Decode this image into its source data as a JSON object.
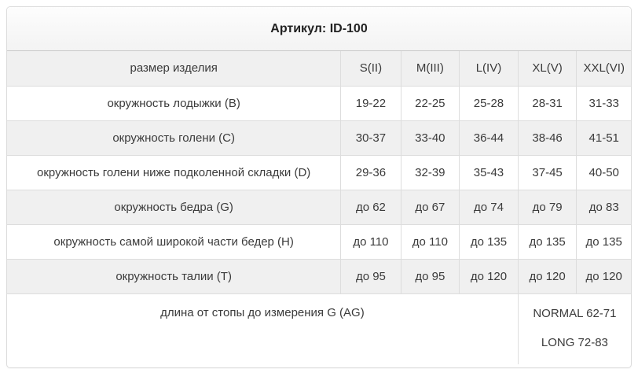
{
  "card": {
    "title": "Артикул: ID-100"
  },
  "table": {
    "header": {
      "label": "размер изделия",
      "sizes": [
        "S(II)",
        "M(III)",
        "L(IV)",
        "XL(V)",
        "XXL(VI)"
      ]
    },
    "rows": [
      {
        "label": "окружность лодыжки (B)",
        "values": [
          "19-22",
          "22-25",
          "25-28",
          "28-31",
          "31-33"
        ]
      },
      {
        "label": "окружность голени (C)",
        "values": [
          "30-37",
          "33-40",
          "36-44",
          "38-46",
          "41-51"
        ]
      },
      {
        "label": "окружность голени ниже подколенной складки (D)",
        "values": [
          "29-36",
          "32-39",
          "35-43",
          "37-45",
          "40-50"
        ]
      },
      {
        "label": "окружность бедра (G)",
        "values": [
          "до 62",
          "до 67",
          "до 74",
          "до 79",
          "до 83"
        ]
      },
      {
        "label": "окружность самой широкой части бедер (H)",
        "values": [
          "до 110",
          "до 110",
          "до 135",
          "до 135",
          "до 135"
        ]
      },
      {
        "label": "окружность талии (T)",
        "values": [
          "до 95",
          "до 95",
          "до 120",
          "до 120",
          "до 120"
        ]
      }
    ],
    "footer": {
      "label": "длина от стопы до измерения G (AG)",
      "lines": [
        "NORMAL 62-71",
        "LONG 72-83"
      ]
    }
  },
  "colors": {
    "stripe_background": "#f0f0f0",
    "cell_border": "#dddddd",
    "title_divider": "#c9c9c9",
    "card_border": "#dcdcdc",
    "text": "#3b3b3b",
    "title_text": "#222222"
  }
}
